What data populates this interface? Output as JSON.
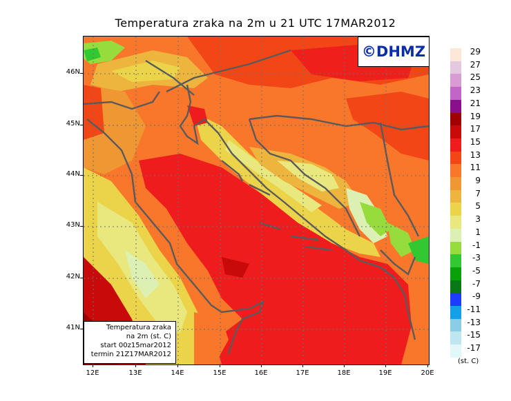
{
  "title": "Temperatura zraka na 2m u 21 UTC 17MAR2012",
  "logo": "©DHMZ",
  "info": {
    "line1": "Temperatura zraka",
    "line2": "na 2m (st. C)",
    "line3": "start 00z15mar2012",
    "line4": "termin 21Z17MAR2012"
  },
  "lat_labels": [
    "46N",
    "45N",
    "44N",
    "43N",
    "42N",
    "41N"
  ],
  "lon_labels": [
    "12E",
    "13E",
    "14E",
    "15E",
    "16E",
    "17E",
    "18E",
    "19E",
    "20E"
  ],
  "legend": {
    "unit": "(st. C)",
    "labels": [
      "29",
      "27",
      "25",
      "23",
      "21",
      "19",
      "17",
      "15",
      "13",
      "11",
      "9",
      "7",
      "5",
      "3",
      "1",
      "-1",
      "-3",
      "-5",
      "-7",
      "-9",
      "-11",
      "-13",
      "-15",
      "-17"
    ],
    "colors": [
      "#fde7d6",
      "#e4c8df",
      "#d89bd4",
      "#c166c6",
      "#8a0f8a",
      "#a00000",
      "#c80a0a",
      "#ee1c1c",
      "#f24616",
      "#f9772a",
      "#ee9733",
      "#edb43e",
      "#ecd44a",
      "#e8e87e",
      "#dcf0b4",
      "#96dc3c",
      "#32c832",
      "#0aa00a",
      "#0a7814",
      "#1e3cff",
      "#14a0e6",
      "#8ccde6",
      "#bde6f0",
      "#e2f7f8"
    ]
  },
  "colors": {
    "sea": "#ee1c1c",
    "coast": "#5a5a5a"
  }
}
